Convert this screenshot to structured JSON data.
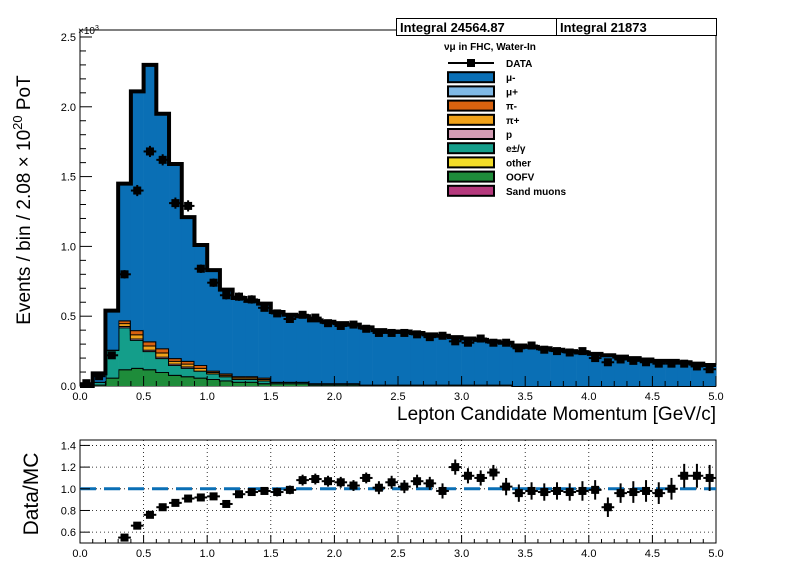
{
  "integrals": [
    "Integral 24564.87",
    "Integral 21873"
  ],
  "chart_data": [
    {
      "type": "bar",
      "subtype": "stacked-histogram-with-data-points",
      "title": "",
      "subtitle": "ν_μ in FHC, Water-In",
      "xlabel": "Lepton Candidate Momentum [GeV/c]",
      "ylabel": "Events / bin / 2.08 × 10^20 PoT",
      "y_exponent_label": "×10^3",
      "xlim": [
        0,
        5
      ],
      "ylim": [
        0,
        2.55
      ],
      "y_unit": "thousands of events",
      "xticks": [
        "0.0",
        "0.5",
        "1.0",
        "1.5",
        "2.0",
        "2.5",
        "3.0",
        "3.5",
        "4.0",
        "4.5",
        "5.0"
      ],
      "yticks": [
        "0.0",
        "0.5",
        "1.0",
        "1.5",
        "2.0",
        "2.5"
      ],
      "grid": false,
      "legend_position": "top-right",
      "bin_width": 0.1,
      "x": [
        0.05,
        0.15,
        0.25,
        0.35,
        0.45,
        0.55,
        0.65,
        0.75,
        0.85,
        0.95,
        1.05,
        1.15,
        1.25,
        1.35,
        1.45,
        1.55,
        1.65,
        1.75,
        1.85,
        1.95,
        2.05,
        2.15,
        2.25,
        2.35,
        2.45,
        2.55,
        2.65,
        2.75,
        2.85,
        2.95,
        3.05,
        3.15,
        3.25,
        3.35,
        3.45,
        3.55,
        3.65,
        3.75,
        3.85,
        3.95,
        4.05,
        4.15,
        4.25,
        4.35,
        4.45,
        4.55,
        4.65,
        4.75,
        4.85,
        4.95
      ],
      "series": [
        {
          "name": "OOFV",
          "color": "#1e8c3a",
          "values": [
            0.0,
            0.01,
            0.06,
            0.12,
            0.13,
            0.12,
            0.1,
            0.08,
            0.07,
            0.06,
            0.05,
            0.04,
            0.03,
            0.03,
            0.02,
            0.02,
            0.02,
            0.02,
            0.01,
            0.01,
            0.01,
            0.01,
            0.01,
            0.01,
            0.01,
            0.01,
            0.01,
            0.01,
            0.01,
            0.01,
            0.01,
            0.01,
            0.01,
            0.01,
            0.0,
            0.0,
            0.0,
            0.0,
            0.0,
            0.0,
            0.0,
            0.0,
            0.0,
            0.0,
            0.0,
            0.0,
            0.0,
            0.0,
            0.0,
            0.0
          ]
        },
        {
          "name": "other",
          "color": "#f2dc29",
          "values": [
            0,
            0,
            0,
            0,
            0,
            0,
            0,
            0,
            0,
            0,
            0,
            0,
            0,
            0,
            0,
            0,
            0,
            0,
            0,
            0,
            0,
            0,
            0,
            0,
            0,
            0,
            0,
            0,
            0,
            0,
            0,
            0,
            0,
            0,
            0,
            0,
            0,
            0,
            0,
            0,
            0,
            0,
            0,
            0,
            0,
            0,
            0,
            0,
            0,
            0
          ]
        },
        {
          "name": "e±/γ",
          "color": "#149e8a",
          "values": [
            0.0,
            0.02,
            0.2,
            0.3,
            0.2,
            0.13,
            0.1,
            0.07,
            0.06,
            0.05,
            0.04,
            0.03,
            0.02,
            0.02,
            0.02,
            0.01,
            0.01,
            0.01,
            0.01,
            0.01,
            0.01,
            0.01,
            0.0,
            0.0,
            0.0,
            0.0,
            0.0,
            0.0,
            0.0,
            0.0,
            0.0,
            0.0,
            0.0,
            0.0,
            0.0,
            0.0,
            0.0,
            0.0,
            0.0,
            0.0,
            0.0,
            0.0,
            0.0,
            0.0,
            0.0,
            0.0,
            0.0,
            0.0,
            0.0,
            0.0
          ]
        },
        {
          "name": "p",
          "color": "#d49cb4",
          "values": [
            0.0,
            0.0,
            0.0,
            0.01,
            0.01,
            0.01,
            0.01,
            0.01,
            0.01,
            0.0,
            0.0,
            0.0,
            0.0,
            0.0,
            0.0,
            0.0,
            0.0,
            0.0,
            0.0,
            0.0,
            0.0,
            0.0,
            0.0,
            0.0,
            0.0,
            0.0,
            0.0,
            0.0,
            0.0,
            0.0,
            0.0,
            0.0,
            0.0,
            0.0,
            0.0,
            0.0,
            0.0,
            0.0,
            0.0,
            0.0,
            0.0,
            0.0,
            0.0,
            0.0,
            0.0,
            0.0,
            0.0,
            0.0,
            0.0,
            0.0
          ]
        },
        {
          "name": "π+",
          "color": "#f0a21a",
          "values": [
            0.0,
            0.0,
            0.0,
            0.02,
            0.03,
            0.03,
            0.03,
            0.02,
            0.02,
            0.02,
            0.01,
            0.01,
            0.01,
            0.01,
            0.01,
            0.0,
            0.0,
            0.0,
            0.0,
            0.0,
            0.0,
            0.0,
            0.0,
            0.0,
            0.0,
            0.0,
            0.0,
            0.0,
            0.0,
            0.0,
            0.0,
            0.0,
            0.0,
            0.0,
            0.0,
            0.0,
            0.0,
            0.0,
            0.0,
            0.0,
            0.0,
            0.0,
            0.0,
            0.0,
            0.0,
            0.0,
            0.0,
            0.0,
            0.0,
            0.0
          ]
        },
        {
          "name": "π-",
          "color": "#d9620f",
          "values": [
            0.0,
            0.0,
            0.0,
            0.02,
            0.03,
            0.03,
            0.03,
            0.02,
            0.02,
            0.02,
            0.01,
            0.01,
            0.01,
            0.01,
            0.01,
            0.0,
            0.0,
            0.0,
            0.0,
            0.0,
            0.0,
            0.0,
            0.0,
            0.0,
            0.0,
            0.0,
            0.0,
            0.0,
            0.0,
            0.0,
            0.0,
            0.0,
            0.0,
            0.0,
            0.0,
            0.0,
            0.0,
            0.0,
            0.0,
            0.0,
            0.0,
            0.0,
            0.0,
            0.0,
            0.0,
            0.0,
            0.0,
            0.0,
            0.0,
            0.0
          ]
        },
        {
          "name": "μ+",
          "color": "#80b9e6",
          "values": [
            0,
            0,
            0,
            0,
            0,
            0,
            0,
            0,
            0,
            0,
            0,
            0,
            0,
            0,
            0,
            0,
            0,
            0,
            0,
            0,
            0,
            0,
            0,
            0,
            0,
            0,
            0,
            0,
            0,
            0,
            0,
            0,
            0,
            0,
            0,
            0,
            0,
            0,
            0,
            0,
            0,
            0,
            0,
            0,
            0,
            0,
            0,
            0,
            0,
            0
          ]
        },
        {
          "name": "μ-",
          "color": "#0a6fb5",
          "values": [
            0.0,
            0.06,
            0.28,
            0.98,
            1.71,
            1.98,
            1.68,
            1.39,
            1.03,
            0.86,
            0.72,
            0.6,
            0.56,
            0.54,
            0.53,
            0.5,
            0.48,
            0.47,
            0.45,
            0.44,
            0.43,
            0.42,
            0.41,
            0.39,
            0.38,
            0.38,
            0.37,
            0.36,
            0.35,
            0.34,
            0.33,
            0.32,
            0.31,
            0.3,
            0.29,
            0.28,
            0.27,
            0.26,
            0.25,
            0.24,
            0.23,
            0.22,
            0.21,
            0.2,
            0.19,
            0.18,
            0.18,
            0.17,
            0.16,
            0.15
          ]
        },
        {
          "name": "Sand muons",
          "color": "#b5397d",
          "values": [
            0,
            0,
            0,
            0,
            0,
            0,
            0,
            0,
            0,
            0,
            0,
            0,
            0,
            0,
            0,
            0,
            0,
            0,
            0,
            0,
            0,
            0,
            0,
            0,
            0,
            0,
            0,
            0,
            0,
            0,
            0,
            0,
            0,
            0,
            0,
            0,
            0,
            0,
            0,
            0,
            0,
            0,
            0,
            0,
            0,
            0,
            0,
            0,
            0,
            0
          ]
        }
      ],
      "data_points": {
        "name": "DATA",
        "y": [
          0.02,
          0.07,
          0.22,
          0.8,
          1.4,
          1.68,
          1.62,
          1.31,
          1.29,
          0.84,
          0.74,
          0.65,
          0.64,
          0.62,
          0.56,
          0.52,
          0.48,
          0.51,
          0.49,
          0.45,
          0.43,
          0.44,
          0.41,
          0.38,
          0.38,
          0.38,
          0.37,
          0.35,
          0.36,
          0.32,
          0.31,
          0.34,
          0.31,
          0.31,
          0.27,
          0.29,
          0.26,
          0.25,
          0.24,
          0.25,
          0.2,
          0.17,
          0.19,
          0.18,
          0.17,
          0.16,
          0.16,
          0.16,
          0.14,
          0.12
        ],
        "err": [
          0.01,
          0.01,
          0.02,
          0.03,
          0.04,
          0.04,
          0.04,
          0.04,
          0.04,
          0.03,
          0.03,
          0.03,
          0.03,
          0.03,
          0.02,
          0.02,
          0.02,
          0.02,
          0.02,
          0.02,
          0.02,
          0.02,
          0.02,
          0.02,
          0.02,
          0.02,
          0.02,
          0.02,
          0.02,
          0.02,
          0.02,
          0.02,
          0.02,
          0.02,
          0.02,
          0.02,
          0.02,
          0.02,
          0.02,
          0.02,
          0.02,
          0.02,
          0.02,
          0.02,
          0.02,
          0.02,
          0.02,
          0.02,
          0.02,
          0.02
        ]
      },
      "legend": [
        "DATA",
        "μ-",
        "μ+",
        "π-",
        "π+",
        "p",
        "e±/γ",
        "other",
        "OOFV",
        "Sand muons"
      ]
    },
    {
      "type": "scatter",
      "subtype": "ratio-with-errorbars",
      "ylabel": "Data/MC",
      "xlim": [
        0,
        5
      ],
      "ylim": [
        0.5,
        1.45
      ],
      "xticks": [
        "0.0",
        "0.5",
        "1.0",
        "1.5",
        "2.0",
        "2.5",
        "3.0",
        "3.5",
        "4.0",
        "4.5",
        "5.0"
      ],
      "yticks": [
        "0.6",
        "0.8",
        "1.0",
        "1.2",
        "1.4"
      ],
      "grid": true,
      "reference_line": 1.0,
      "x": [
        0.35,
        0.45,
        0.55,
        0.65,
        0.75,
        0.85,
        0.95,
        1.05,
        1.15,
        1.25,
        1.35,
        1.45,
        1.55,
        1.65,
        1.75,
        1.85,
        1.95,
        2.05,
        2.15,
        2.25,
        2.35,
        2.45,
        2.55,
        2.65,
        2.75,
        2.85,
        2.95,
        3.05,
        3.15,
        3.25,
        3.35,
        3.45,
        3.55,
        3.65,
        3.75,
        3.85,
        3.95,
        4.05,
        4.15,
        4.25,
        4.35,
        4.45,
        4.55,
        4.65,
        4.75,
        4.85,
        4.95
      ],
      "y": [
        0.55,
        0.66,
        0.76,
        0.83,
        0.87,
        0.91,
        0.92,
        0.93,
        0.86,
        0.95,
        0.97,
        0.98,
        0.97,
        0.99,
        1.08,
        1.09,
        1.07,
        1.06,
        1.03,
        1.1,
        1.01,
        1.06,
        1.02,
        1.07,
        1.05,
        0.98,
        1.2,
        1.12,
        1.1,
        1.15,
        1.02,
        0.96,
        0.98,
        0.97,
        0.98,
        0.97,
        0.98,
        0.99,
        0.83,
        0.96,
        0.97,
        0.98,
        0.96,
        1.0,
        1.12,
        1.12,
        1.1
      ],
      "err": [
        0.02,
        0.02,
        0.02,
        0.02,
        0.02,
        0.02,
        0.02,
        0.03,
        0.03,
        0.03,
        0.03,
        0.03,
        0.04,
        0.04,
        0.05,
        0.05,
        0.05,
        0.05,
        0.05,
        0.05,
        0.06,
        0.06,
        0.06,
        0.06,
        0.06,
        0.07,
        0.07,
        0.07,
        0.07,
        0.07,
        0.08,
        0.08,
        0.08,
        0.08,
        0.08,
        0.08,
        0.09,
        0.09,
        0.09,
        0.09,
        0.1,
        0.1,
        0.1,
        0.1,
        0.11,
        0.11,
        0.12
      ]
    }
  ]
}
